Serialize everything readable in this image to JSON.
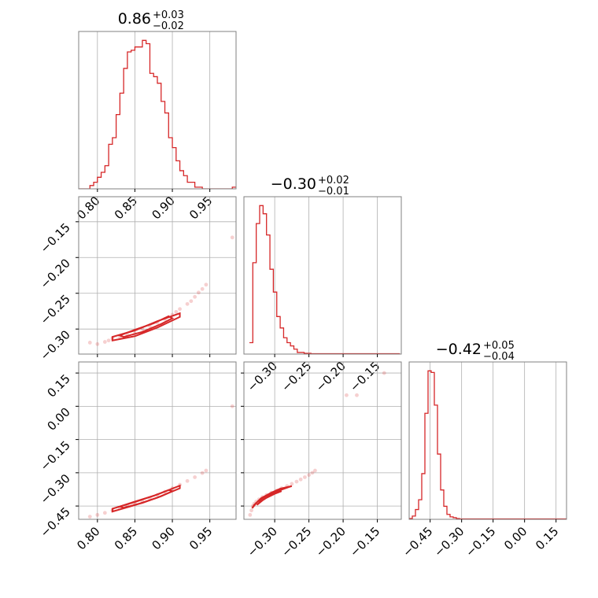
{
  "colors": {
    "line": "#d62728",
    "grid": "#b0b0b0",
    "frame": "#808080"
  },
  "chart_data": [
    {
      "type": "histogram",
      "panel": "diag-0",
      "title": {
        "main": "0.86",
        "sup": "+0.03",
        "sub": "−0.02"
      },
      "xlim": [
        0.775,
        0.985
      ],
      "xticks": [
        0.8,
        0.85,
        0.9,
        0.95
      ],
      "xtick_labels": [
        "0.80",
        "0.85",
        "0.90",
        "0.95"
      ],
      "grid": true,
      "bin_start": 0.775,
      "bin_width": 0.005,
      "counts": [
        0,
        0,
        0,
        0.02,
        0.04,
        0.07,
        0.1,
        0.14,
        0.27,
        0.31,
        0.45,
        0.58,
        0.73,
        0.83,
        0.84,
        0.86,
        0.86,
        0.9,
        0.88,
        0.7,
        0.68,
        0.64,
        0.53,
        0.46,
        0.31,
        0.25,
        0.17,
        0.11,
        0.08,
        0.04,
        0.04,
        0.01,
        0.01,
        0,
        0,
        0,
        0,
        0,
        0,
        0,
        0,
        0.01
      ]
    },
    {
      "type": "histogram",
      "panel": "diag-1",
      "title": {
        "main": "−0.30",
        "sup": "+0.02",
        "sub": "−0.01"
      },
      "xlim": [
        -0.345,
        -0.115
      ],
      "xticks": [
        -0.3,
        -0.25,
        -0.2,
        -0.15
      ],
      "xtick_labels": [
        "−0.30",
        "−0.25",
        "−0.20",
        "−0.15"
      ],
      "grid": true,
      "bin_start": -0.337,
      "bin_width": 0.005,
      "counts": [
        0.07,
        0.56,
        0.8,
        0.91,
        0.86,
        0.73,
        0.52,
        0.38,
        0.23,
        0.16,
        0.1,
        0.07,
        0.05,
        0.03,
        0.01,
        0.01,
        0.005,
        0.005,
        0.002,
        0.002,
        0.002,
        0.002,
        0.002,
        0.002,
        0.002,
        0.002,
        0.002,
        0.002,
        0.002,
        0.002,
        0.002,
        0.002,
        0.002,
        0.002,
        0.002,
        0.002,
        0.002,
        0.002,
        0.002,
        0.002,
        0.002,
        0.002,
        0.002,
        0.002
      ]
    },
    {
      "type": "histogram",
      "panel": "diag-2",
      "title": {
        "main": "−0.42",
        "sup": "+0.05",
        "sub": "−0.04"
      },
      "xlim": [
        -0.55,
        0.2
      ],
      "xticks": [
        -0.45,
        -0.3,
        -0.15,
        0.0,
        0.15
      ],
      "xtick_labels": [
        "−0.45",
        "−0.30",
        "−0.15",
        "0.00",
        "0.15"
      ],
      "grid": true,
      "bin_start": -0.55,
      "bin_width": 0.015,
      "counts": [
        0.005,
        0.02,
        0.06,
        0.12,
        0.28,
        0.65,
        0.91,
        0.9,
        0.7,
        0.4,
        0.18,
        0.08,
        0.03,
        0.015,
        0.01,
        0.005,
        0.002,
        0.002,
        0.002,
        0.002,
        0.002,
        0.002,
        0.002,
        0.002,
        0.002,
        0.002,
        0.002,
        0.002,
        0.002,
        0.002,
        0.002,
        0.002,
        0.002,
        0.002,
        0.002,
        0.002,
        0.002,
        0.002,
        0.002,
        0.002,
        0.002,
        0.002,
        0.002,
        0.002,
        0.002,
        0.002,
        0.002,
        0.002,
        0.002,
        0.002
      ]
    },
    {
      "type": "scatter",
      "panel": "off-1-0",
      "xlim": [
        0.775,
        0.985
      ],
      "ylim": [
        -0.335,
        -0.115
      ],
      "xticks": [
        0.8,
        0.85,
        0.9,
        0.95
      ],
      "yticks": [
        -0.3,
        -0.25,
        -0.2,
        -0.15
      ],
      "ytick_labels": [
        "−0.30",
        "−0.25",
        "−0.20",
        "−0.15"
      ],
      "grid": true,
      "points": [
        [
          0.79,
          -0.319
        ],
        [
          0.8,
          -0.321
        ],
        [
          0.81,
          -0.318
        ],
        [
          0.815,
          -0.316
        ],
        [
          0.82,
          -0.313
        ],
        [
          0.83,
          -0.311
        ],
        [
          0.84,
          -0.309
        ],
        [
          0.85,
          -0.306
        ],
        [
          0.86,
          -0.3
        ],
        [
          0.87,
          -0.296
        ],
        [
          0.88,
          -0.291
        ],
        [
          0.89,
          -0.286
        ],
        [
          0.9,
          -0.28
        ],
        [
          0.905,
          -0.276
        ],
        [
          0.91,
          -0.272
        ],
        [
          0.92,
          -0.265
        ],
        [
          0.925,
          -0.261
        ],
        [
          0.93,
          -0.255
        ],
        [
          0.935,
          -0.249
        ],
        [
          0.94,
          -0.244
        ],
        [
          0.945,
          -0.238
        ],
        [
          0.98,
          -0.172
        ]
      ],
      "contours": [
        [
          [
            0.82,
            -0.316
          ],
          [
            0.85,
            -0.31
          ],
          [
            0.88,
            -0.298
          ],
          [
            0.91,
            -0.283
          ],
          [
            0.91,
            -0.278
          ],
          [
            0.88,
            -0.289
          ],
          [
            0.85,
            -0.302
          ],
          [
            0.82,
            -0.311
          ]
        ],
        [
          [
            0.835,
            -0.311
          ],
          [
            0.86,
            -0.304
          ],
          [
            0.885,
            -0.293
          ],
          [
            0.9,
            -0.285
          ],
          [
            0.895,
            -0.282
          ],
          [
            0.875,
            -0.292
          ],
          [
            0.85,
            -0.301
          ],
          [
            0.83,
            -0.309
          ]
        ]
      ]
    },
    {
      "type": "scatter",
      "panel": "off-2-0",
      "xlim": [
        0.775,
        0.985
      ],
      "ylim": [
        -0.51,
        0.2
      ],
      "xticks": [
        0.8,
        0.85,
        0.9,
        0.95
      ],
      "xtick_labels": [
        "0.80",
        "0.85",
        "0.90",
        "0.95"
      ],
      "yticks": [
        -0.45,
        -0.3,
        -0.15,
        0.0,
        0.15
      ],
      "ytick_labels": [
        "−0.45",
        "−0.30",
        "−0.15",
        "0.00",
        "0.15"
      ],
      "grid": true,
      "points": [
        [
          0.79,
          -0.498
        ],
        [
          0.8,
          -0.49
        ],
        [
          0.81,
          -0.481
        ],
        [
          0.82,
          -0.47
        ],
        [
          0.83,
          -0.46
        ],
        [
          0.84,
          -0.45
        ],
        [
          0.85,
          -0.438
        ],
        [
          0.86,
          -0.428
        ],
        [
          0.87,
          -0.414
        ],
        [
          0.88,
          -0.4
        ],
        [
          0.89,
          -0.386
        ],
        [
          0.9,
          -0.37
        ],
        [
          0.91,
          -0.354
        ],
        [
          0.92,
          -0.337
        ],
        [
          0.93,
          -0.32
        ],
        [
          0.94,
          -0.301
        ],
        [
          0.945,
          -0.29
        ],
        [
          0.98,
          0.0
        ]
      ],
      "contours": [
        [
          [
            0.82,
            -0.475
          ],
          [
            0.85,
            -0.446
          ],
          [
            0.88,
            -0.412
          ],
          [
            0.91,
            -0.37
          ],
          [
            0.91,
            -0.358
          ],
          [
            0.88,
            -0.398
          ],
          [
            0.85,
            -0.432
          ],
          [
            0.82,
            -0.462
          ]
        ],
        [
          [
            0.835,
            -0.458
          ],
          [
            0.86,
            -0.436
          ],
          [
            0.885,
            -0.406
          ],
          [
            0.9,
            -0.383
          ],
          [
            0.895,
            -0.378
          ],
          [
            0.875,
            -0.404
          ],
          [
            0.85,
            -0.43
          ],
          [
            0.83,
            -0.452
          ]
        ]
      ]
    },
    {
      "type": "scatter",
      "panel": "off-2-1",
      "xlim": [
        -0.345,
        -0.115
      ],
      "ylim": [
        -0.51,
        0.2
      ],
      "xticks": [
        -0.3,
        -0.25,
        -0.2,
        -0.15
      ],
      "xtick_labels": [
        "−0.30",
        "−0.25",
        "−0.20",
        "−0.15"
      ],
      "yticks": [
        -0.45,
        -0.3,
        -0.15,
        0.0,
        0.15
      ],
      "grid": true,
      "points": [
        [
          -0.336,
          -0.49
        ],
        [
          -0.334,
          -0.47
        ],
        [
          -0.332,
          -0.45
        ],
        [
          -0.33,
          -0.44
        ],
        [
          -0.327,
          -0.43
        ],
        [
          -0.323,
          -0.42
        ],
        [
          -0.318,
          -0.41
        ],
        [
          -0.312,
          -0.4
        ],
        [
          -0.305,
          -0.39
        ],
        [
          -0.297,
          -0.38
        ],
        [
          -0.29,
          -0.37
        ],
        [
          -0.282,
          -0.36
        ],
        [
          -0.275,
          -0.35
        ],
        [
          -0.268,
          -0.34
        ],
        [
          -0.262,
          -0.33
        ],
        [
          -0.256,
          -0.32
        ],
        [
          -0.25,
          -0.31
        ],
        [
          -0.245,
          -0.3
        ],
        [
          -0.241,
          -0.29
        ],
        [
          -0.195,
          0.05
        ],
        [
          -0.18,
          0.05
        ],
        [
          -0.14,
          0.15
        ]
      ],
      "contours": [
        [
          [
            -0.333,
            -0.46
          ],
          [
            -0.325,
            -0.43
          ],
          [
            -0.312,
            -0.405
          ],
          [
            -0.298,
            -0.385
          ],
          [
            -0.28,
            -0.365
          ],
          [
            -0.275,
            -0.36
          ],
          [
            -0.292,
            -0.372
          ],
          [
            -0.305,
            -0.39
          ],
          [
            -0.32,
            -0.415
          ],
          [
            -0.33,
            -0.445
          ]
        ],
        [
          [
            -0.326,
            -0.445
          ],
          [
            -0.318,
            -0.425
          ],
          [
            -0.308,
            -0.405
          ],
          [
            -0.295,
            -0.385
          ],
          [
            -0.29,
            -0.383
          ],
          [
            -0.3,
            -0.395
          ],
          [
            -0.312,
            -0.413
          ],
          [
            -0.322,
            -0.432
          ]
        ]
      ]
    }
  ]
}
